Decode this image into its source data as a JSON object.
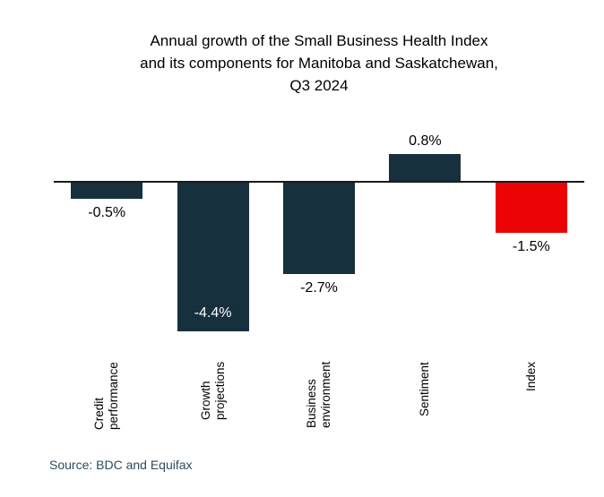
{
  "title": {
    "lines": [
      "Annual growth of the Small Business Health Index",
      "and its components for Manitoba and Saskatchewan,",
      "Q3 2024"
    ]
  },
  "source": {
    "text": "Source: BDC and Equifax",
    "color": "#2d4c60"
  },
  "colors": {
    "bar_default": "#17303e",
    "bar_highlight": "#ec0404",
    "axis_line": "#1a1a1a",
    "value_label": "#000000",
    "value_label_inside": "#ffffff",
    "category_label": "#000000",
    "title_text": "#000000",
    "background": "#ffffff"
  },
  "chart_data": {
    "type": "bar",
    "title": "Annual growth of the Small Business Health Index and its components for Manitoba and Saskatchewan, Q3 2024",
    "xlabel": "",
    "ylabel": "",
    "unit": "%",
    "grid": false,
    "legend": false,
    "baseline": 0,
    "ylim": [
      -4.8,
      1.2
    ],
    "categories": [
      "Credit performance",
      "Growth projections",
      "Business environment",
      "Sentiment",
      "Index"
    ],
    "values": [
      -0.5,
      -4.4,
      -2.7,
      0.8,
      -1.5
    ],
    "bars": [
      {
        "category": "Credit performance",
        "category_lines": [
          "Credit",
          "performance"
        ],
        "value": -0.5,
        "label": "-0.5%",
        "color_key": "bar_default",
        "label_placement": "below"
      },
      {
        "category": "Growth projections",
        "category_lines": [
          "Growth",
          "projections"
        ],
        "value": -4.4,
        "label": "-4.4%",
        "color_key": "bar_default",
        "label_placement": "inside"
      },
      {
        "category": "Business environment",
        "category_lines": [
          "Business",
          "environment"
        ],
        "value": -2.7,
        "label": "-2.7%",
        "color_key": "bar_default",
        "label_placement": "below"
      },
      {
        "category": "Sentiment",
        "category_lines": [
          "Sentiment"
        ],
        "value": 0.8,
        "label": "0.8%",
        "color_key": "bar_default",
        "label_placement": "above"
      },
      {
        "category": "Index",
        "category_lines": [
          "Index"
        ],
        "value": -1.5,
        "label": "-1.5%",
        "color_key": "bar_highlight",
        "label_placement": "below"
      }
    ]
  }
}
